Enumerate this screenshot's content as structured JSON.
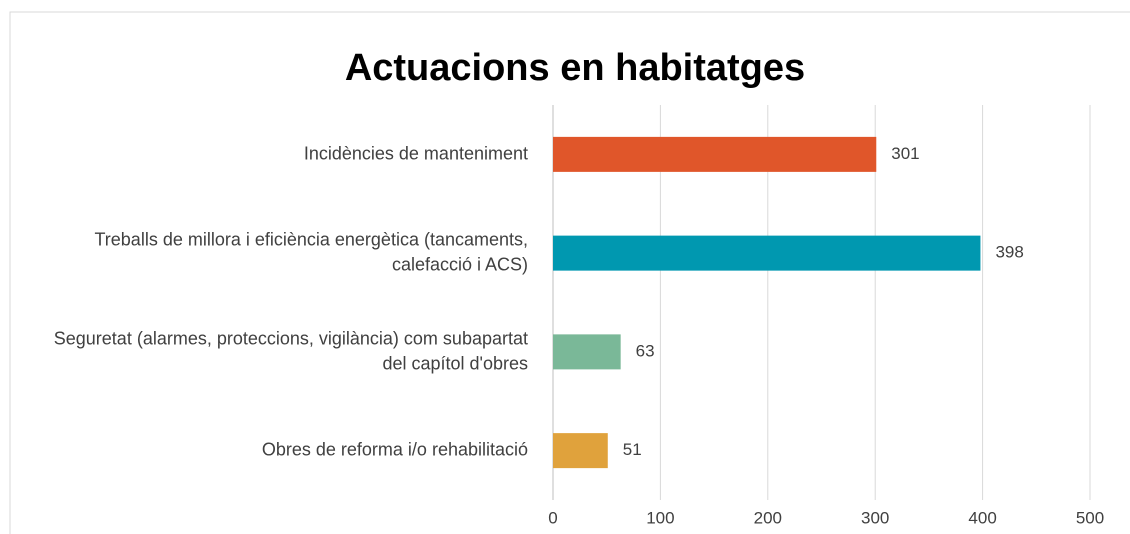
{
  "chart_data": {
    "type": "bar",
    "orientation": "horizontal",
    "title": "Actuacions en habitatges",
    "categories": [
      "Incidències de manteniment",
      "Treballs de millora i eficiència energètica (tancaments, calefacció i ACS)",
      "Seguretat (alarmes, proteccions, vigilància) com subapartat del capítol d'obres",
      "Obres de reforma i/o rehabilitació"
    ],
    "values": [
      301,
      398,
      63,
      51
    ],
    "colors": [
      "#e0562a",
      "#0098b0",
      "#7ab898",
      "#e0a23c"
    ],
    "xlim": [
      0,
      500
    ],
    "xticks": [
      0,
      100,
      200,
      300,
      400,
      500
    ],
    "grid": true
  }
}
